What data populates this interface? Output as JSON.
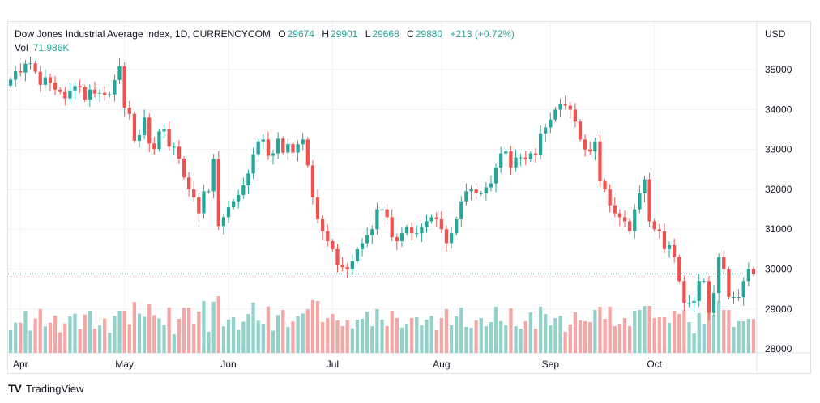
{
  "header": {
    "symbol": "Dow Jones Industrial Average Index, 1D, CURRENCYCOM",
    "o_label": "O",
    "o_value": "29674",
    "h_label": "H",
    "h_value": "29901",
    "l_label": "L",
    "l_value": "29668",
    "c_label": "C",
    "c_value": "29880",
    "change": "+213 (+0.72%)",
    "vol_label": "Vol",
    "vol_value": "71.986K",
    "currency": "USD"
  },
  "footer": {
    "logo": "TV",
    "brand": "TradingView"
  },
  "colors": {
    "up": "#26a69a",
    "down": "#ef5350",
    "up_vol": "#93d2cb",
    "down_vol": "#f4a7a5",
    "grid": "#f0f3fa",
    "last_price": "#26a69a"
  },
  "chart_data": {
    "type": "candlestick",
    "y_ticks": [
      35000,
      34000,
      33000,
      32000,
      31000,
      30000,
      29000,
      28000
    ],
    "ylim": [
      27900,
      36200
    ],
    "x_ticks": [
      "Apr",
      "May",
      "Jun",
      "Jul",
      "Aug",
      "Sep",
      "Oct"
    ],
    "last_price": 29880,
    "closes": [
      34750,
      34960,
      34930,
      35150,
      35160,
      34950,
      34620,
      34810,
      34680,
      34500,
      34440,
      34280,
      34480,
      34590,
      34560,
      34250,
      34500,
      34400,
      34420,
      34360,
      34380,
      34740,
      35090,
      34050,
      33890,
      33220,
      33360,
      33800,
      33150,
      33010,
      33450,
      33500,
      33070,
      33070,
      32770,
      32300,
      32000,
      31800,
      31400,
      31950,
      31950,
      32760,
      31080,
      31300,
      31550,
      31700,
      31860,
      32100,
      32400,
      32880,
      33200,
      33250,
      32840,
      32900,
      33270,
      32920,
      33140,
      32920,
      33130,
      33250,
      32600,
      31800,
      31250,
      30950,
      30700,
      30500,
      30100,
      30050,
      29990,
      30200,
      30500,
      30650,
      30850,
      31000,
      31500,
      31500,
      31300,
      30800,
      30700,
      30900,
      31050,
      30900,
      30900,
      31050,
      31200,
      31300,
      31250,
      31000,
      30650,
      30900,
      31250,
      31700,
      31950,
      32000,
      31900,
      31900,
      32050,
      32150,
      32550,
      32900,
      32950,
      32550,
      32800,
      32800,
      32750,
      32900,
      32850,
      33400,
      33550,
      33750,
      34000,
      34150,
      34100,
      34000,
      33700,
      33250,
      33000,
      32950,
      33200,
      32200,
      32000,
      31600,
      31400,
      31300,
      31200,
      30950,
      31500,
      31900,
      32250,
      31200,
      31000,
      30950,
      30500,
      30600,
      30300,
      29700,
      29150,
      29150,
      29200,
      29700,
      29700,
      28900,
      29400,
      30300,
      30000,
      29300,
      29300,
      29300,
      29700,
      30000,
      29880
    ]
  }
}
